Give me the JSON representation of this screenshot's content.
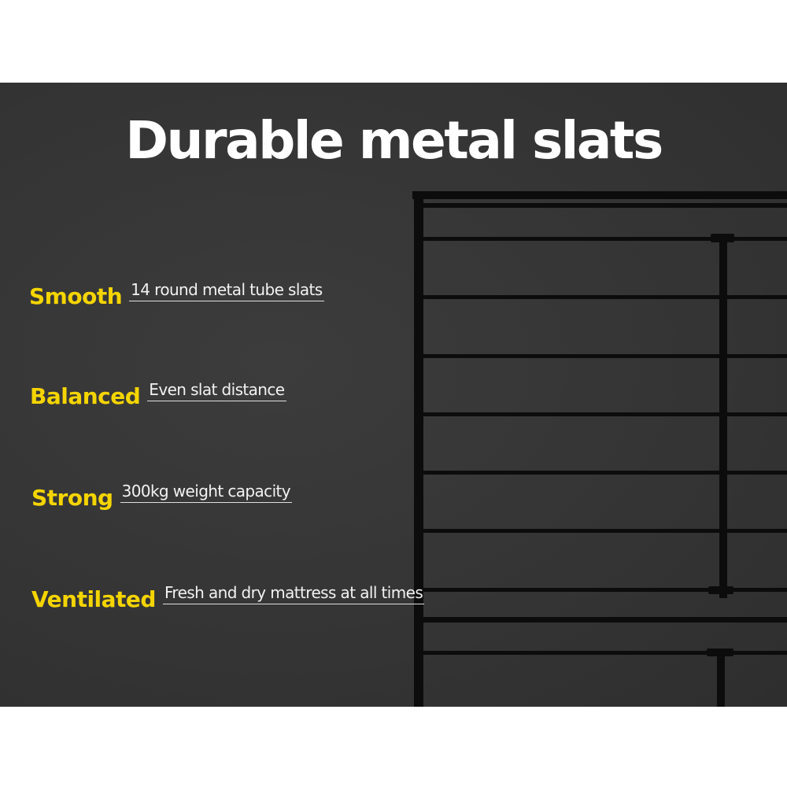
{
  "title": "Durable metal slats",
  "colors": {
    "accent": "#f5d500",
    "background": "#363636",
    "text": "#ffffff"
  },
  "features": [
    {
      "label": "Smooth",
      "description": "14 round metal tube slats"
    },
    {
      "label": "Balanced",
      "description": "Even slat distance"
    },
    {
      "label": "Strong",
      "description": "300kg weight capacity"
    },
    {
      "label": "Ventilated",
      "description": "Fresh and dry mattress at all times"
    }
  ]
}
